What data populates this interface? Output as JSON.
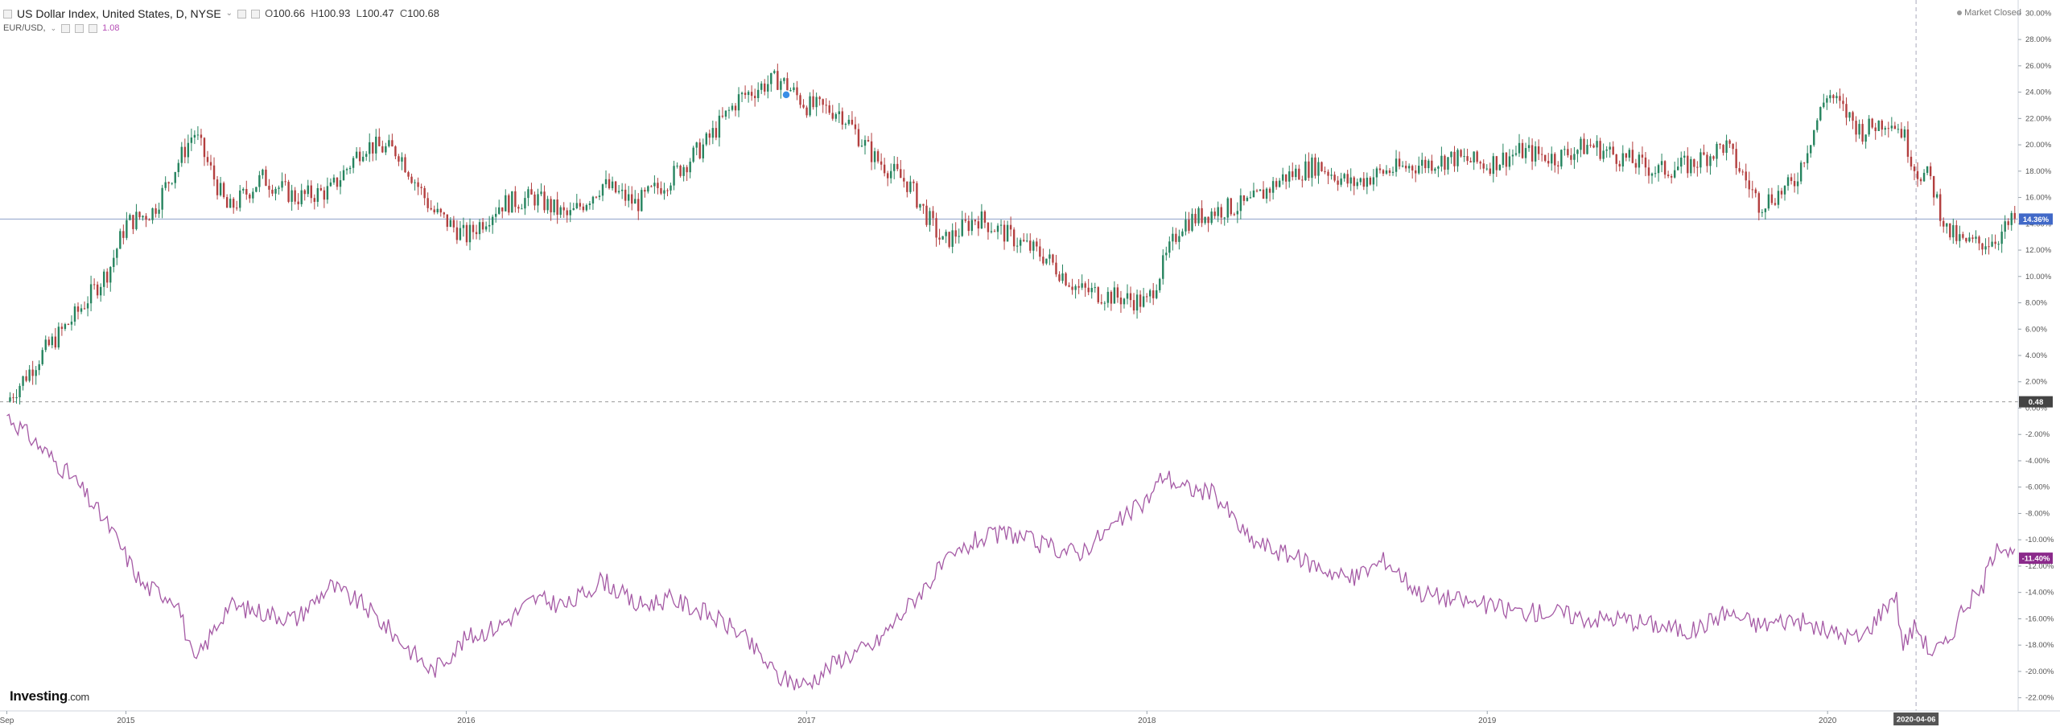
{
  "legend": {
    "main_title": "US Dollar Index, United States, D, NYSE",
    "ohlc": {
      "o_label": "O",
      "o": "100.66",
      "h_label": "H",
      "h": "100.93",
      "l_label": "L",
      "l": "100.47",
      "c_label": "C",
      "c": "100.68"
    },
    "compare_symbol": "EUR/USD,",
    "compare_value": "1.08"
  },
  "market_status": "Market Closed",
  "brand": {
    "name": "Investing",
    "suffix": ".com"
  },
  "colors": {
    "up": "#26845f",
    "down": "#b33f3f",
    "compare": "#a55aa5",
    "axis_label_blue": "#4169c8",
    "axis_label_purple": "#8b2a8b",
    "axis_label_dark": "#444444"
  },
  "chart_data": {
    "type": "line",
    "y_axis": {
      "unit": "%",
      "range": [
        -23,
        31
      ],
      "ticks": [
        "30.00%",
        "28.00%",
        "26.00%",
        "24.00%",
        "22.00%",
        "20.00%",
        "18.00%",
        "16.00%",
        "14.00%",
        "12.00%",
        "10.00%",
        "8.00%",
        "6.00%",
        "4.00%",
        "2.00%",
        "0.00%",
        "-2.00%",
        "-4.00%",
        "-6.00%",
        "-8.00%",
        "-10.00%",
        "-12.00%",
        "-14.00%",
        "-16.00%",
        "-18.00%",
        "-20.00%",
        "-22.00%"
      ],
      "tick_values": [
        30,
        28,
        26,
        24,
        22,
        20,
        18,
        16,
        14,
        12,
        10,
        8,
        6,
        4,
        2,
        0,
        -2,
        -4,
        -6,
        -8,
        -10,
        -12,
        -14,
        -16,
        -18,
        -20,
        -22
      ]
    },
    "x_axis": {
      "range": [
        2014.63,
        2020.56
      ],
      "ticks": [
        {
          "label": "Sep",
          "value": 2014.65
        },
        {
          "label": "2015",
          "value": 2015.0
        },
        {
          "label": "2016",
          "value": 2016.0
        },
        {
          "label": "2017",
          "value": 2017.0
        },
        {
          "label": "2018",
          "value": 2018.0
        },
        {
          "label": "2019",
          "value": 2019.0
        },
        {
          "label": "2020",
          "value": 2020.0
        }
      ]
    },
    "baseline_label": "0.48",
    "baseline_value": 0.48,
    "crosshair": {
      "label": "2020-04-06",
      "x": 2020.26
    },
    "series": [
      {
        "style": "candles",
        "last_label": "14.36%",
        "last_value": 14.36,
        "x": [
          2014.65,
          2014.75,
          2014.85,
          2014.95,
          2015.0,
          2015.08,
          2015.2,
          2015.3,
          2015.4,
          2015.5,
          2015.6,
          2015.7,
          2015.8,
          2015.9,
          2016.0,
          2016.1,
          2016.2,
          2016.3,
          2016.4,
          2016.5,
          2016.6,
          2016.7,
          2016.8,
          2016.87,
          2016.92,
          2017.0,
          2017.1,
          2017.2,
          2017.3,
          2017.4,
          2017.5,
          2017.6,
          2017.7,
          2017.8,
          2017.9,
          2018.0,
          2018.05,
          2018.1,
          2018.2,
          2018.3,
          2018.4,
          2018.5,
          2018.6,
          2018.7,
          2018.8,
          2018.9,
          2019.0,
          2019.1,
          2019.2,
          2019.3,
          2019.4,
          2019.5,
          2019.6,
          2019.7,
          2019.8,
          2019.9,
          2020.0,
          2020.1,
          2020.18,
          2020.2,
          2020.22,
          2020.26,
          2020.3,
          2020.35,
          2020.4,
          2020.45,
          2020.5,
          2020.55
        ],
        "values": [
          0.5,
          4.0,
          7.0,
          10.5,
          14.0,
          15.0,
          21.0,
          15.0,
          17.5,
          16.0,
          16.5,
          20.0,
          19.5,
          15.0,
          13.0,
          15.5,
          16.0,
          14.5,
          17.0,
          15.5,
          17.5,
          20.0,
          23.5,
          24.5,
          25.0,
          23.0,
          22.5,
          19.0,
          17.0,
          12.5,
          14.5,
          13.0,
          11.5,
          9.0,
          8.5,
          8.0,
          11.0,
          14.0,
          15.0,
          15.5,
          17.5,
          18.5,
          17.0,
          18.0,
          18.5,
          19.0,
          18.5,
          19.5,
          19.0,
          20.0,
          19.0,
          18.0,
          18.5,
          20.0,
          15.5,
          17.0,
          24.0,
          21.0,
          22.0,
          21.5,
          21.0,
          18.0,
          17.5,
          13.5,
          12.5,
          12.5,
          13.0,
          14.36
        ]
      },
      {
        "style": "line",
        "last_label": "-11.40%",
        "last_value": -11.4,
        "x": [
          2014.65,
          2014.75,
          2014.85,
          2014.95,
          2015.05,
          2015.15,
          2015.2,
          2015.3,
          2015.4,
          2015.5,
          2015.6,
          2015.7,
          2015.8,
          2015.9,
          2016.0,
          2016.1,
          2016.2,
          2016.3,
          2016.4,
          2016.5,
          2016.6,
          2016.7,
          2016.8,
          2016.87,
          2016.92,
          2017.0,
          2017.1,
          2017.2,
          2017.3,
          2017.4,
          2017.5,
          2017.6,
          2017.7,
          2017.8,
          2017.9,
          2018.0,
          2018.05,
          2018.1,
          2018.2,
          2018.3,
          2018.4,
          2018.5,
          2018.6,
          2018.7,
          2018.8,
          2018.9,
          2019.0,
          2019.1,
          2019.2,
          2019.3,
          2019.4,
          2019.5,
          2019.6,
          2019.7,
          2019.8,
          2019.9,
          2020.0,
          2020.1,
          2020.2,
          2020.22,
          2020.26,
          2020.3,
          2020.35,
          2020.4,
          2020.45,
          2020.5,
          2020.55
        ],
        "values": [
          -0.5,
          -3.0,
          -5.5,
          -9.0,
          -13.5,
          -14.5,
          -19.5,
          -15.0,
          -15.5,
          -16.0,
          -13.5,
          -15.0,
          -17.5,
          -20.0,
          -17.5,
          -16.5,
          -14.5,
          -15.0,
          -13.0,
          -15.0,
          -14.5,
          -15.5,
          -17.0,
          -19.0,
          -20.5,
          -21.0,
          -19.0,
          -18.0,
          -15.0,
          -12.0,
          -10.0,
          -9.5,
          -10.5,
          -11.0,
          -9.0,
          -7.0,
          -5.0,
          -6.0,
          -6.5,
          -10.0,
          -11.0,
          -12.0,
          -13.0,
          -11.5,
          -14.0,
          -14.5,
          -15.0,
          -15.5,
          -15.5,
          -16.0,
          -16.0,
          -16.5,
          -17.0,
          -15.5,
          -16.5,
          -16.0,
          -17.0,
          -17.5,
          -14.0,
          -18.0,
          -16.5,
          -18.5,
          -18.0,
          -15.0,
          -14.0,
          -10.0,
          -11.4
        ]
      }
    ]
  }
}
